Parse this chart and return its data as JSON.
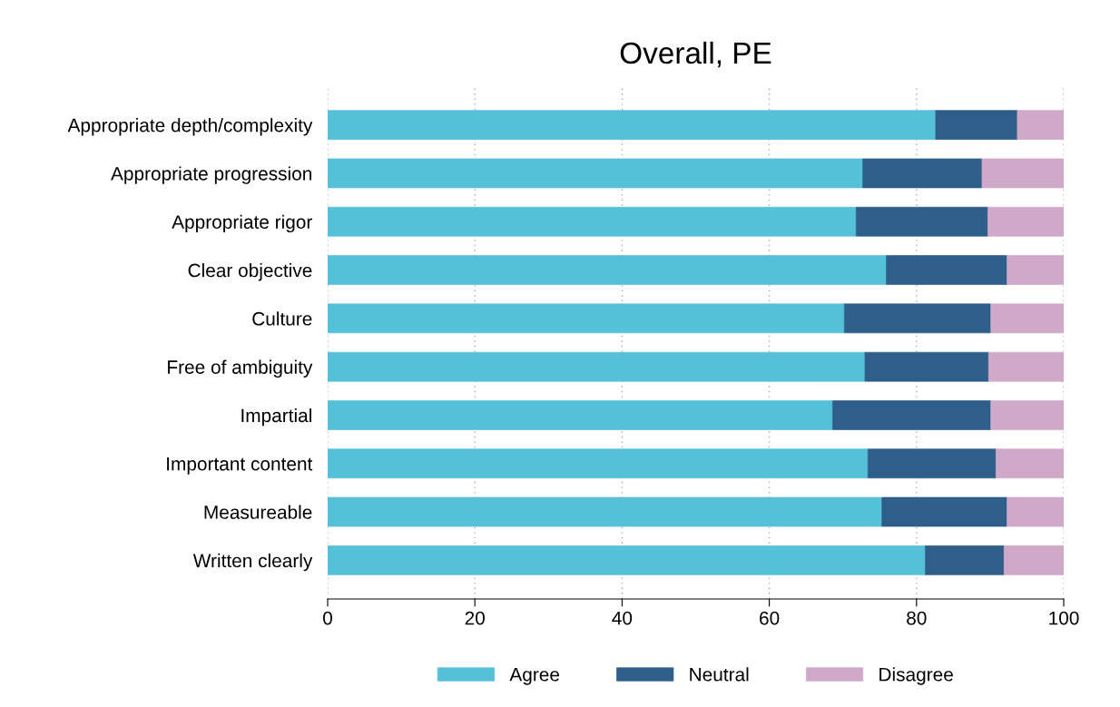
{
  "chart_data": {
    "type": "bar",
    "title": "Overall, PE",
    "orientation": "horizontal",
    "stacked": true,
    "categories": [
      "Appropriate depth/complexity",
      "Appropriate progression",
      "Appropriate rigor",
      "Clear objective",
      "Culture",
      "Free of ambiguity",
      "Impartial",
      "Important content",
      "Measureable",
      "Written clearly"
    ],
    "series": [
      {
        "name": "Agree",
        "color": "#55c1d9",
        "values": [
          82.6,
          72.7,
          71.8,
          75.9,
          70.2,
          73.0,
          68.6,
          73.4,
          75.3,
          81.2
        ]
      },
      {
        "name": "Neutral",
        "color": "#2e5f8a",
        "values": [
          11.1,
          16.2,
          17.9,
          16.4,
          19.9,
          16.8,
          21.5,
          17.4,
          17.0,
          10.7
        ]
      },
      {
        "name": "Disagree",
        "color": "#d0a8c8",
        "values": [
          6.3,
          11.1,
          10.3,
          7.7,
          9.9,
          10.2,
          9.9,
          9.2,
          7.7,
          8.1
        ]
      }
    ],
    "xlim": [
      0,
      100
    ],
    "xticks": [
      0,
      20,
      40,
      60,
      80,
      100
    ],
    "grid": "x",
    "legend": "bottom"
  }
}
